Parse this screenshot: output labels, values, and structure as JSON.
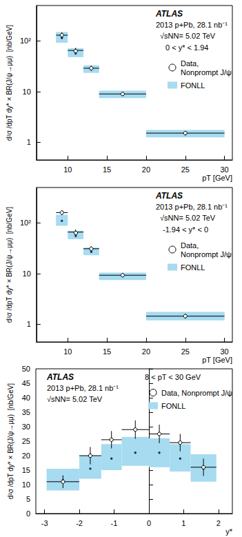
{
  "chart_data": [
    {
      "type": "errorbar",
      "annotations": [
        "ATLAS",
        "2013 p+Pb, 28.1 nb⁻¹",
        "√sNN= 5.02 TeV",
        "0 < y* < 1.94"
      ],
      "x_label": "pT [GeV]",
      "y_label": "d²σ /dpT dy* × BR(J/ψ→μμ)  [nb/GeV]",
      "bins": [
        8.5,
        10,
        12,
        14,
        20,
        30
      ],
      "series": [
        {
          "name": "FONLL",
          "type": "band",
          "color": "#a6dbf0",
          "marker": "point",
          "values": [
            115,
            58,
            28,
            9.0,
            1.5
          ],
          "lower": [
            92,
            48,
            23.5,
            7.5,
            1.25
          ],
          "upper": [
            150,
            72,
            33,
            10.5,
            1.75
          ]
        },
        {
          "name": "Data,\nNonprompt J/ψ",
          "type": "errorbar",
          "color": "#000000",
          "marker": "open_circle",
          "values": [
            130,
            65,
            29,
            9.0,
            1.52
          ],
          "errors": [
            18,
            8,
            3.5,
            0.8,
            0.15
          ]
        }
      ],
      "xlim": [
        6,
        31
      ],
      "xticks": [
        10,
        15,
        20,
        25,
        30
      ],
      "ylim": [
        0.45,
        500
      ],
      "yticks": [
        1,
        10,
        {
          "value": 100,
          "label": "10²"
        }
      ],
      "log": "y",
      "grid": false
    },
    {
      "type": "errorbar",
      "annotations": [
        "ATLAS",
        "2013 p+Pb, 28.1 nb⁻¹",
        "√sNN= 5.02 TeV",
        "-1.94 < y* < 0"
      ],
      "x_label": "pT [GeV]",
      "y_label": "d²σ /dpT dy* × BR(J/ψ→μμ)  [nb/GeV]",
      "bins": [
        8.5,
        10,
        12,
        14,
        20,
        30
      ],
      "series": [
        {
          "name": "FONLL",
          "type": "band",
          "color": "#a6dbf0",
          "marker": "point",
          "values": [
            110,
            57,
            27,
            9.0,
            1.45
          ],
          "lower": [
            88,
            48,
            23,
            7.5,
            1.2
          ],
          "upper": [
            145,
            70,
            32.5,
            10.5,
            1.75
          ]
        },
        {
          "name": "Data,\nNonprompt J/ψ",
          "type": "errorbar",
          "color": "#000000",
          "marker": "open_circle",
          "values": [
            160,
            66,
            31,
            9.3,
            1.45
          ],
          "errors": [
            18,
            8,
            3.5,
            0.8,
            0.15
          ]
        }
      ],
      "xlim": [
        6,
        31
      ],
      "xticks": [
        10,
        15,
        20,
        25,
        30
      ],
      "ylim": [
        0.45,
        500
      ],
      "yticks": [
        1,
        10,
        {
          "value": 100,
          "label": "10²"
        }
      ],
      "log": "y",
      "grid": false
    },
    {
      "type": "errorbar",
      "annotations": [
        "ATLAS",
        "2013 p+Pb, 28.1 nb⁻¹",
        "√sNN= 5.02 TeV",
        "8 < pT < 30 GeV"
      ],
      "x_label": "y*",
      "y_label": "d²σ /dpT dy* × BR(J/ψ→μμ)  [nb/GeV]",
      "bins": [
        -2.94,
        -2,
        -1.37,
        -0.78,
        0,
        0.6,
        1.2,
        1.94
      ],
      "series": [
        {
          "name": "FONLL",
          "type": "band",
          "color": "#a6dbf0",
          "marker": "point",
          "values": [
            11.5,
            15.5,
            19,
            21,
            21,
            19,
            15.5
          ],
          "lower": [
            8,
            12,
            15,
            16.5,
            16,
            14.5,
            11
          ],
          "upper": [
            15.5,
            20,
            24,
            26.5,
            26,
            24,
            20.5
          ]
        },
        {
          "name": "Data, Nonprompt J/ψ",
          "type": "errorbar",
          "color": "#000000",
          "marker": "open_circle",
          "values": [
            11,
            20,
            25.5,
            29,
            27.5,
            24.5,
            16
          ],
          "errors": [
            2.2,
            3,
            3,
            3.2,
            3.2,
            3,
            3
          ]
        }
      ],
      "xlim": [
        -3.25,
        2.4
      ],
      "xticks": [
        -3,
        -2,
        -1,
        0,
        1,
        2
      ],
      "ylim": [
        0,
        50
      ],
      "yticks": [
        0,
        5,
        10,
        15,
        20,
        25,
        30,
        35,
        40,
        45,
        50
      ],
      "log": false,
      "grid": false
    }
  ]
}
